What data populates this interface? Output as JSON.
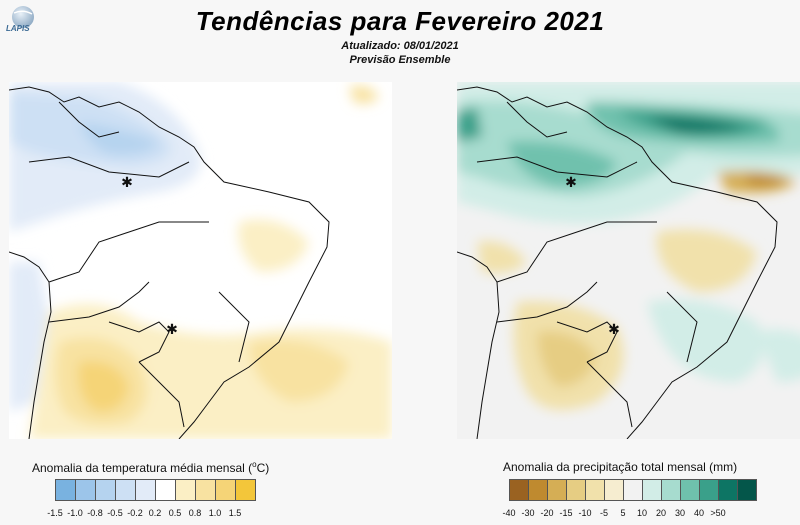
{
  "logo": {
    "text": "LAPIS",
    "icon": "globe-icon"
  },
  "header": {
    "title": "Tendências para Fevereiro 2021",
    "updated": "Atualizado: 08/01/2021",
    "method": "Previsão Ensemble"
  },
  "temperature_map": {
    "legend_title_prefix": "Anomalia da temperatura média mensal (",
    "legend_unit": "o",
    "legend_title_suffix": "C)",
    "color_scale": [
      {
        "label": "-1.5",
        "color": "#79b2e0"
      },
      {
        "label": "-1.0",
        "color": "#9cc5ea"
      },
      {
        "label": "-0.8",
        "color": "#b5d3ef"
      },
      {
        "label": "-0.5",
        "color": "#cde0f4"
      },
      {
        "label": "-0.2",
        "color": "#e2ebf8"
      },
      {
        "label": "0.2",
        "color": "#ffffff"
      },
      {
        "label": "0.5",
        "color": "#fbefc5"
      },
      {
        "label": "0.8",
        "color": "#f8e2a1"
      },
      {
        "label": "1.0",
        "color": "#f5d477"
      },
      {
        "label": "1.5",
        "color": "#f3c63a"
      }
    ]
  },
  "precipitation_map": {
    "legend_title": "Anomalia da precipitação total mensal (mm)",
    "color_scale": [
      {
        "label": "-40",
        "color": "#9a6221"
      },
      {
        "label": "-30",
        "color": "#bf8a2f"
      },
      {
        "label": "-20",
        "color": "#d5ae55"
      },
      {
        "label": "-15",
        "color": "#e6cd83"
      },
      {
        "label": "-10",
        "color": "#f1e1ab"
      },
      {
        "label": "-5",
        "color": "#f6edd0"
      },
      {
        "label": "5",
        "color": "#f2f2f2"
      },
      {
        "label": "10",
        "color": "#d2ede7"
      },
      {
        "label": "20",
        "color": "#a7dccf"
      },
      {
        "label": "30",
        "color": "#6fc1ad"
      },
      {
        "label": "40",
        "color": "#3aa08a"
      },
      {
        "label": ">50",
        "color": "#0d7564"
      },
      {
        "label": "",
        "color": "#04564a"
      }
    ]
  }
}
